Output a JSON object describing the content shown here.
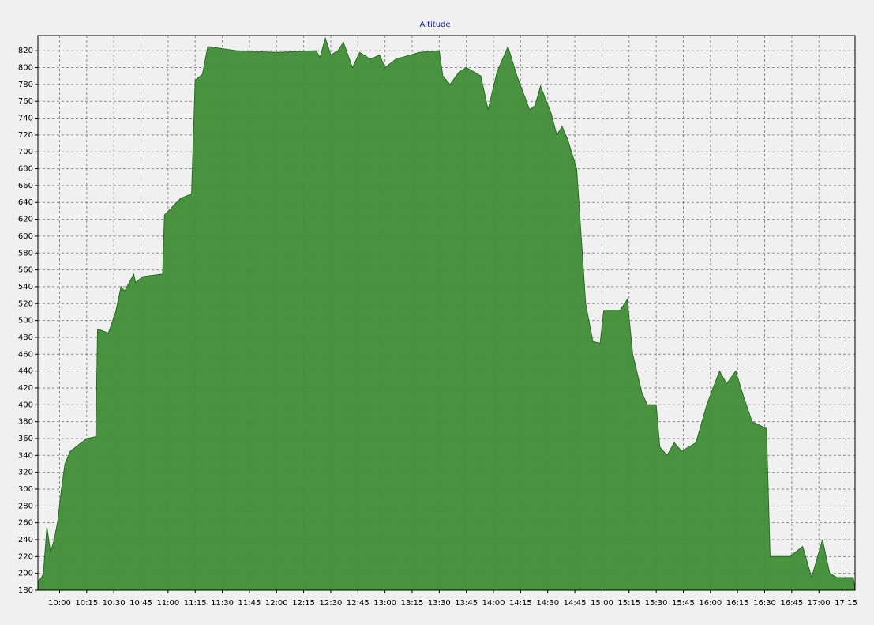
{
  "chart_data": {
    "type": "area",
    "title": "Altitude",
    "x": [
      "09:48",
      "09:50",
      "09:51",
      "09:53",
      "09:55",
      "09:57",
      "09:59",
      "10:01",
      "10:03",
      "10:06",
      "10:09",
      "10:15",
      "10:20",
      "10:21",
      "10:27",
      "10:31",
      "10:34",
      "10:36",
      "10:41",
      "10:42",
      "10:46",
      "10:57",
      "10:58",
      "11:07",
      "11:13",
      "11:15",
      "11:19",
      "11:22",
      "11:38",
      "12:00",
      "12:22",
      "12:24",
      "12:27",
      "12:30",
      "12:34",
      "12:37",
      "12:42",
      "12:46",
      "12:52",
      "12:57",
      "13:00",
      "13:06",
      "13:19",
      "13:30",
      "13:32",
      "13:36",
      "13:41",
      "13:45",
      "13:53",
      "13:57",
      "14:02",
      "14:08",
      "14:13",
      "14:20",
      "14:23",
      "14:26",
      "14:32",
      "14:35",
      "14:38",
      "14:41",
      "14:46",
      "14:51",
      "14:55",
      "14:59",
      "15:01",
      "15:10",
      "15:14",
      "15:17",
      "15:22",
      "15:25",
      "15:30",
      "15:32",
      "15:36",
      "15:40",
      "15:44",
      "15:52",
      "15:58",
      "16:05",
      "16:09",
      "16:14",
      "16:18",
      "16:23",
      "16:31",
      "16:33",
      "16:44",
      "16:51",
      "16:56",
      "17:02",
      "17:06",
      "17:10",
      "17:19",
      "17:20"
    ],
    "values": [
      190,
      195,
      200,
      255,
      225,
      240,
      262,
      300,
      330,
      345,
      350,
      360,
      362,
      490,
      485,
      510,
      540,
      535,
      555,
      545,
      552,
      555,
      625,
      645,
      650,
      785,
      792,
      825,
      820,
      818,
      820,
      812,
      835,
      815,
      820,
      830,
      800,
      818,
      810,
      815,
      800,
      810,
      818,
      820,
      790,
      780,
      795,
      800,
      790,
      750,
      795,
      825,
      790,
      750,
      755,
      778,
      745,
      720,
      730,
      715,
      680,
      520,
      475,
      473,
      512,
      512,
      525,
      460,
      415,
      400,
      400,
      350,
      340,
      355,
      345,
      355,
      400,
      440,
      425,
      440,
      412,
      380,
      372,
      220,
      220,
      232,
      195,
      240,
      200,
      195,
      195,
      182
    ],
    "color": "#3f8d36",
    "xlim": [
      "09:48",
      "17:20"
    ],
    "xticks": [
      "10:00",
      "10:15",
      "10:30",
      "10:45",
      "11:00",
      "11:15",
      "11:30",
      "11:45",
      "12:00",
      "12:15",
      "12:30",
      "12:45",
      "13:00",
      "13:15",
      "13:30",
      "13:45",
      "14:00",
      "14:15",
      "14:30",
      "14:45",
      "15:00",
      "15:15",
      "15:30",
      "15:45",
      "16:00",
      "16:15",
      "16:30",
      "16:45",
      "17:00",
      "17:15"
    ],
    "ylim": [
      180,
      838
    ],
    "yticks": [
      180,
      200,
      220,
      240,
      260,
      280,
      300,
      320,
      340,
      360,
      380,
      400,
      420,
      440,
      460,
      480,
      500,
      520,
      540,
      560,
      580,
      600,
      620,
      640,
      660,
      680,
      700,
      720,
      740,
      760,
      780,
      800,
      820
    ],
    "grid": true
  }
}
